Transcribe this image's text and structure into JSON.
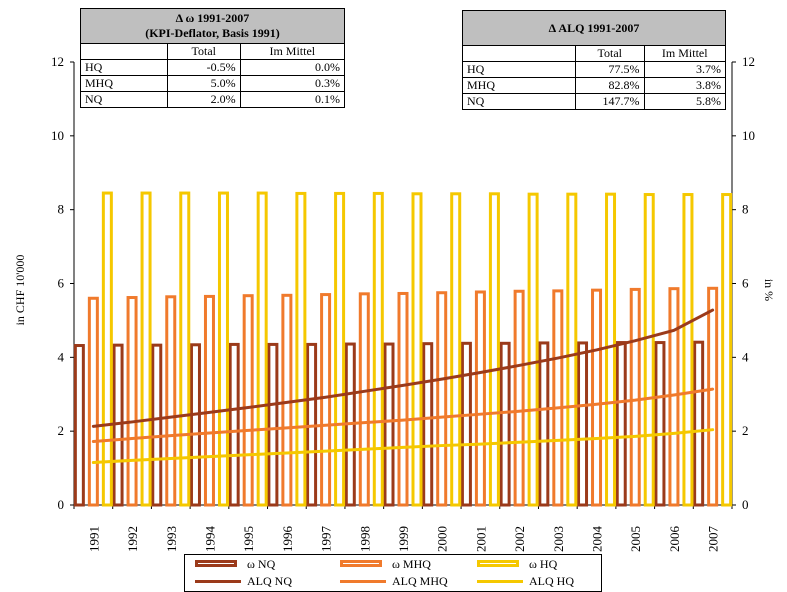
{
  "colors": {
    "nq": "#9b3a1a",
    "mhq": "#f07a2c",
    "hq": "#f5c800"
  },
  "table_omega": {
    "title_line1": "Δ ω 1991-2007",
    "title_line2": "(KPI-Deflator, Basis 1991)",
    "col_total": "Total",
    "col_mean": "Im Mittel",
    "rows": [
      {
        "label": "HQ",
        "total": "-0.5%",
        "mean": "0.0%"
      },
      {
        "label": "MHQ",
        "total": "5.0%",
        "mean": "0.3%"
      },
      {
        "label": "NQ",
        "total": "2.0%",
        "mean": "0.1%"
      }
    ]
  },
  "table_alq": {
    "title": "Δ ALQ 1991-2007",
    "col_total": "Total",
    "col_mean": "Im Mittel",
    "rows": [
      {
        "label": "HQ",
        "total": "77.5%",
        "mean": "3.7%"
      },
      {
        "label": "MHQ",
        "total": "82.8%",
        "mean": "3.8%"
      },
      {
        "label": "NQ",
        "total": "147.7%",
        "mean": "5.8%"
      }
    ]
  },
  "chart_data": {
    "type": "bar",
    "categories": [
      "1991",
      "1992",
      "1993",
      "1994",
      "1995",
      "1996",
      "1997",
      "1998",
      "1999",
      "2000",
      "2001",
      "2002",
      "2003",
      "2004",
      "2005",
      "2006",
      "2007"
    ],
    "ylabel_left": "in CHF 10'000",
    "ylabel_right": "in %",
    "ylim_left": [
      0,
      12
    ],
    "ylim_right": [
      0,
      12
    ],
    "y_ticks": [
      "0",
      "2",
      "4",
      "6",
      "8",
      "10",
      "12"
    ],
    "grid": false,
    "legend_position": "bottom",
    "bar_series": [
      {
        "name": "ω NQ",
        "color": "#9b3a1a",
        "values": [
          4.32,
          4.33,
          4.33,
          4.34,
          4.35,
          4.35,
          4.35,
          4.36,
          4.36,
          4.37,
          4.38,
          4.38,
          4.39,
          4.39,
          4.4,
          4.4,
          4.41
        ]
      },
      {
        "name": "ω MHQ",
        "color": "#f07a2c",
        "values": [
          5.6,
          5.62,
          5.64,
          5.65,
          5.67,
          5.68,
          5.7,
          5.72,
          5.73,
          5.75,
          5.77,
          5.79,
          5.8,
          5.82,
          5.84,
          5.86,
          5.87
        ]
      },
      {
        "name": "ω HQ",
        "color": "#f5c800",
        "values": [
          8.45,
          8.45,
          8.45,
          8.45,
          8.45,
          8.44,
          8.44,
          8.44,
          8.43,
          8.43,
          8.43,
          8.42,
          8.42,
          8.42,
          8.41,
          8.41,
          8.41
        ]
      }
    ],
    "line_series": [
      {
        "name": "ALQ NQ",
        "color": "#9b3a1a",
        "values": [
          2.13,
          2.25,
          2.38,
          2.51,
          2.64,
          2.78,
          2.92,
          3.08,
          3.24,
          3.41,
          3.59,
          3.78,
          3.98,
          4.2,
          4.45,
          4.73,
          5.28
        ]
      },
      {
        "name": "ALQ MHQ",
        "color": "#f07a2c",
        "values": [
          1.72,
          1.8,
          1.88,
          1.95,
          2.02,
          2.09,
          2.16,
          2.23,
          2.3,
          2.38,
          2.46,
          2.54,
          2.63,
          2.73,
          2.84,
          2.98,
          3.14
        ]
      },
      {
        "name": "ALQ HQ",
        "color": "#f5c800",
        "values": [
          1.15,
          1.21,
          1.26,
          1.31,
          1.36,
          1.41,
          1.46,
          1.51,
          1.56,
          1.61,
          1.65,
          1.7,
          1.75,
          1.8,
          1.86,
          1.94,
          2.04
        ]
      }
    ]
  }
}
